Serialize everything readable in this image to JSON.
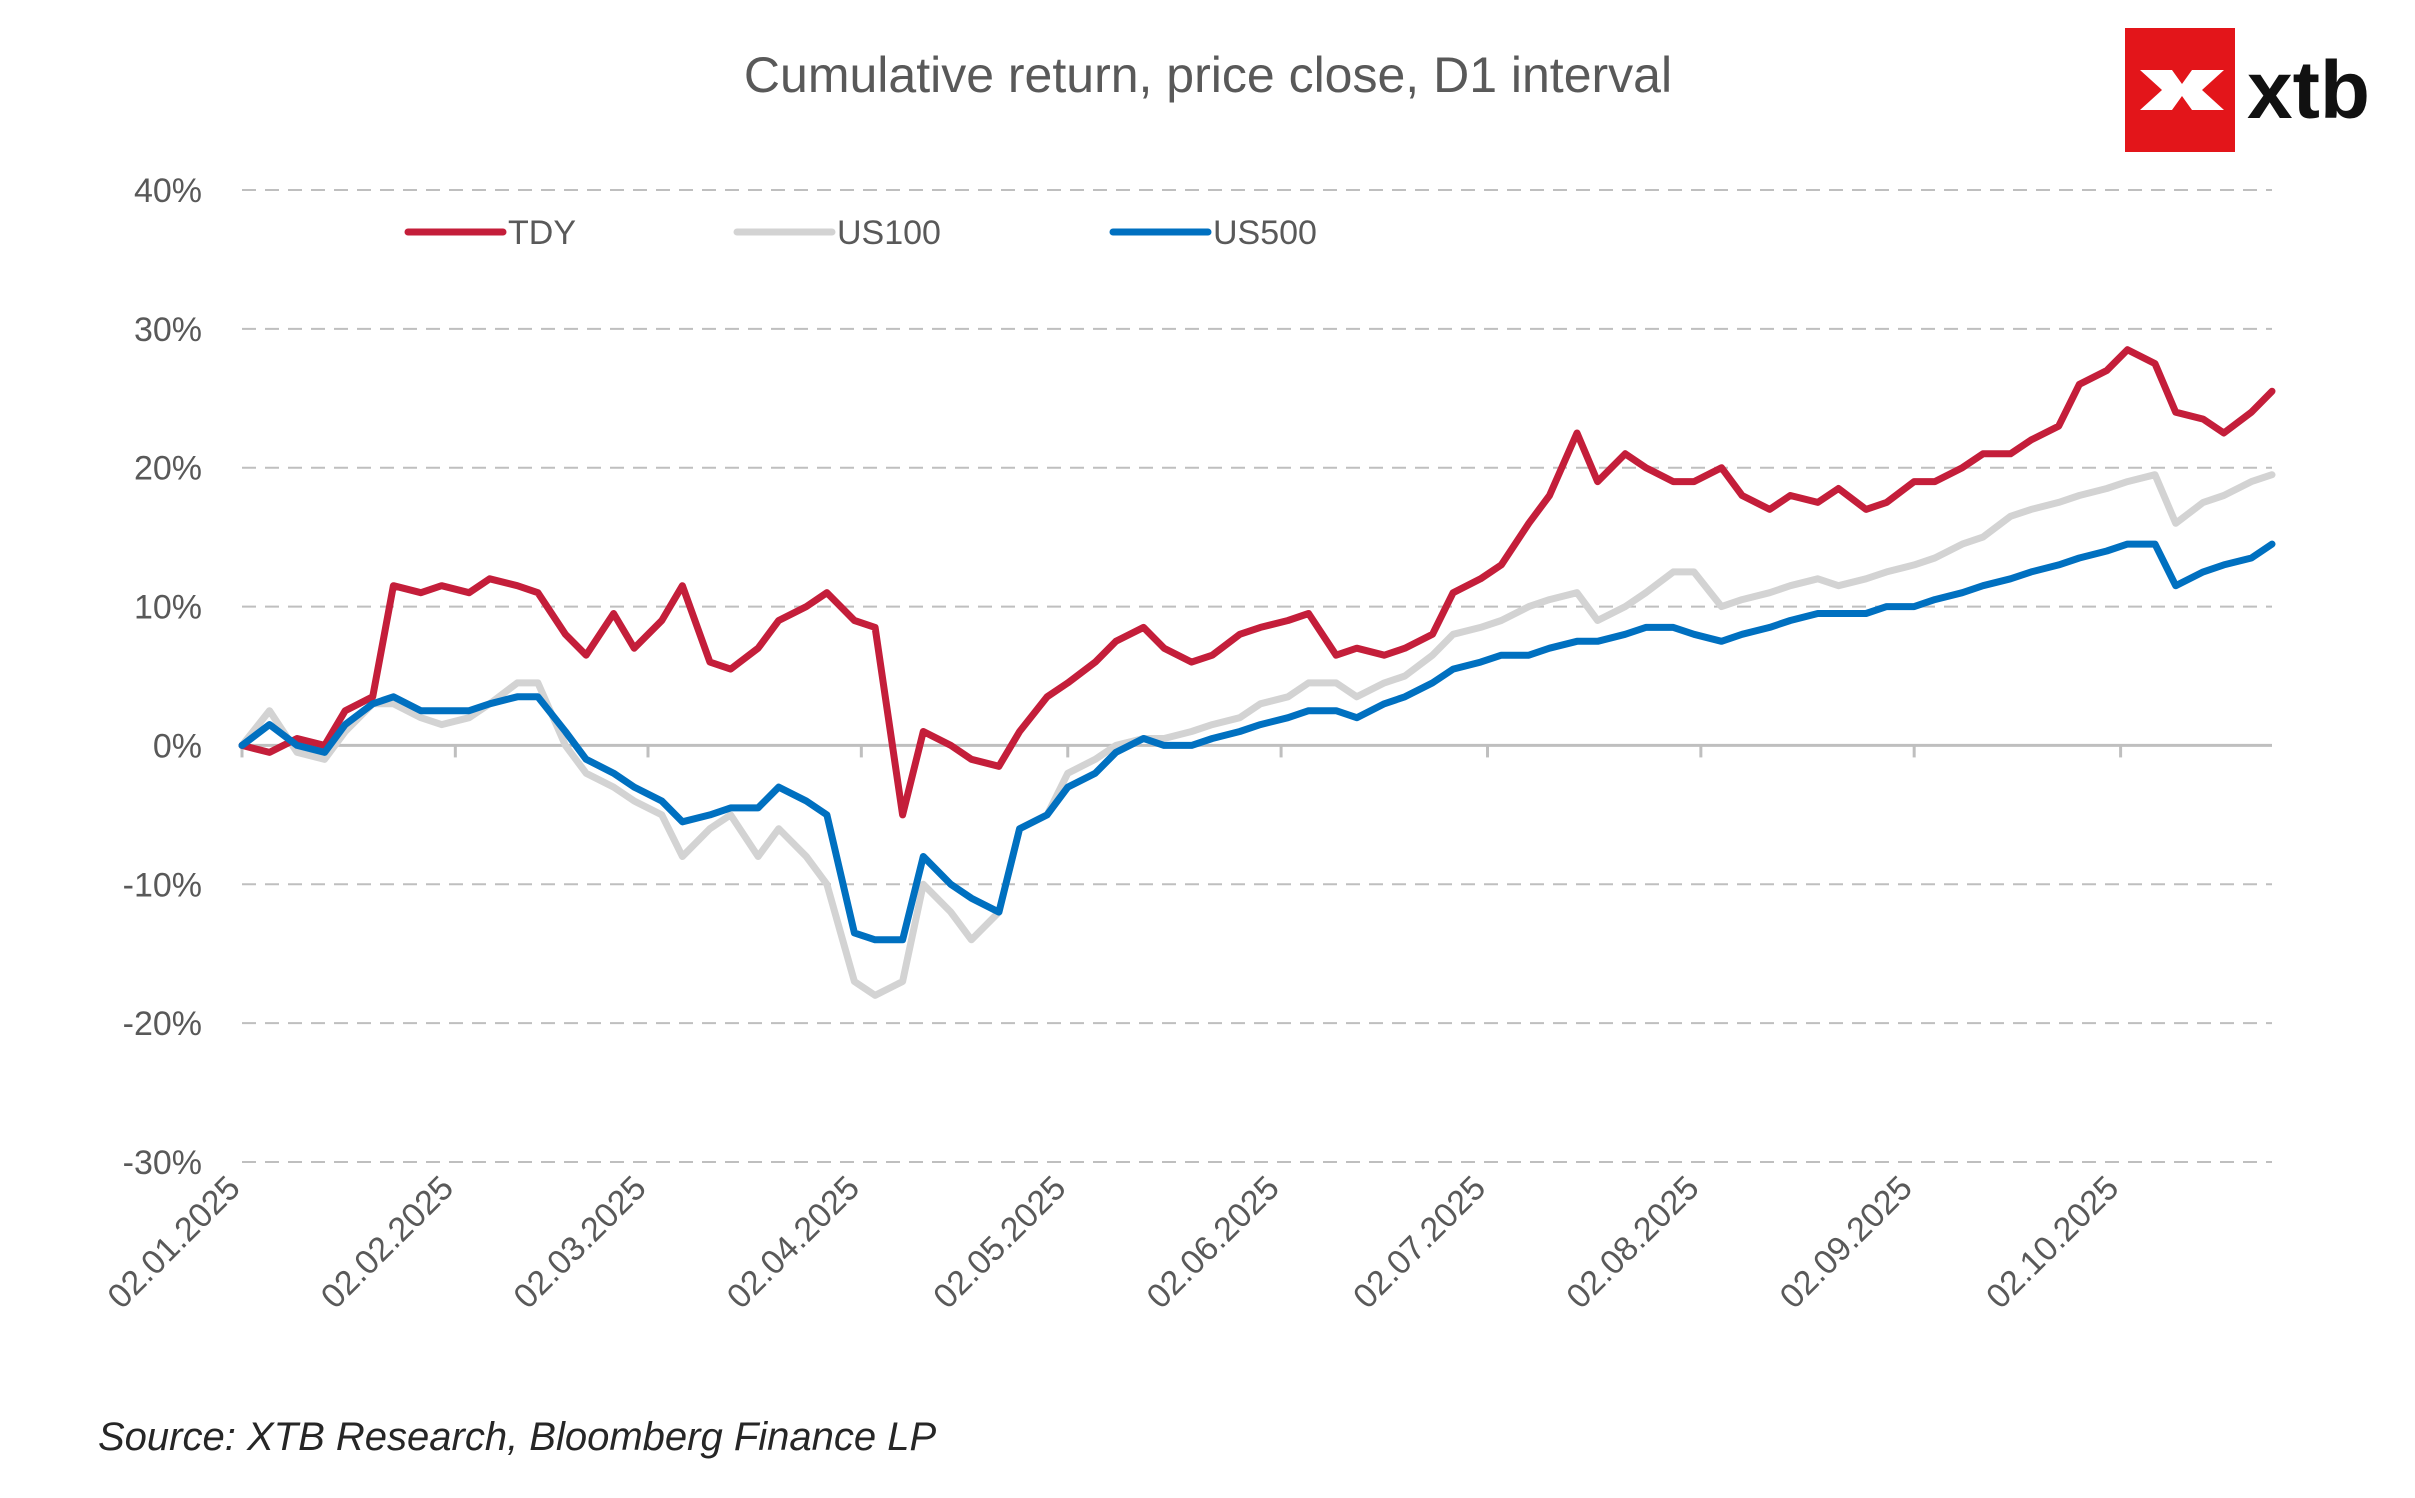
{
  "colors": {
    "TDY": "#C41E3A",
    "US100": "#D3D3D3",
    "US500": "#0070C0",
    "logo_red": "#E3151A",
    "grid": "#BFBFBF",
    "text": "#595959"
  },
  "logo": {
    "text": "xtb",
    "icon": "xtb-arrows-icon"
  },
  "source": "Source: XTB Research, Bloomberg Finance LP",
  "chart_data": {
    "type": "line",
    "title": "Cumulative return, price close, D1 interval",
    "xlabel": "",
    "ylabel": "",
    "ylim": [
      -30,
      40
    ],
    "yticks": [
      40,
      30,
      20,
      10,
      0,
      -10,
      -20,
      -30
    ],
    "ytick_labels": [
      "40%",
      "30%",
      "20%",
      "10%",
      "0%",
      "-10%",
      "-20%",
      "-30%"
    ],
    "x_range": [
      "2025-01-02",
      "2025-10-24"
    ],
    "xticks": [
      "2025-01-02",
      "2025-02-02",
      "2025-03-02",
      "2025-04-02",
      "2025-05-02",
      "2025-06-02",
      "2025-07-02",
      "2025-08-02",
      "2025-09-02",
      "2025-10-02"
    ],
    "xtick_labels": [
      "02.01.2025",
      "02.02.2025",
      "02.03.2025",
      "02.04.2025",
      "02.05.2025",
      "02.06.2025",
      "02.07.2025",
      "02.08.2025",
      "02.09.2025",
      "02.10.2025"
    ],
    "grid": "horizontal dashed",
    "legend": "top-left, horizontal",
    "x": [
      "2025-01-02",
      "2025-01-06",
      "2025-01-10",
      "2025-01-14",
      "2025-01-17",
      "2025-01-21",
      "2025-01-24",
      "2025-01-28",
      "2025-01-31",
      "2025-02-04",
      "2025-02-07",
      "2025-02-11",
      "2025-02-14",
      "2025-02-18",
      "2025-02-21",
      "2025-02-25",
      "2025-02-28",
      "2025-03-04",
      "2025-03-07",
      "2025-03-11",
      "2025-03-14",
      "2025-03-18",
      "2025-03-21",
      "2025-03-25",
      "2025-03-28",
      "2025-04-01",
      "2025-04-04",
      "2025-04-08",
      "2025-04-11",
      "2025-04-15",
      "2025-04-18",
      "2025-04-22",
      "2025-04-25",
      "2025-04-29",
      "2025-05-02",
      "2025-05-06",
      "2025-05-09",
      "2025-05-13",
      "2025-05-16",
      "2025-05-20",
      "2025-05-23",
      "2025-05-27",
      "2025-05-30",
      "2025-06-03",
      "2025-06-06",
      "2025-06-10",
      "2025-06-13",
      "2025-06-17",
      "2025-06-20",
      "2025-06-24",
      "2025-06-27",
      "2025-07-01",
      "2025-07-04",
      "2025-07-08",
      "2025-07-11",
      "2025-07-15",
      "2025-07-18",
      "2025-07-22",
      "2025-07-25",
      "2025-07-29",
      "2025-08-01",
      "2025-08-05",
      "2025-08-08",
      "2025-08-12",
      "2025-08-15",
      "2025-08-19",
      "2025-08-22",
      "2025-08-26",
      "2025-08-29",
      "2025-09-02",
      "2025-09-05",
      "2025-09-09",
      "2025-09-12",
      "2025-09-16",
      "2025-09-19",
      "2025-09-23",
      "2025-09-26",
      "2025-09-30",
      "2025-10-03",
      "2025-10-07",
      "2025-10-10",
      "2025-10-14",
      "2025-10-17",
      "2025-10-21",
      "2025-10-24"
    ],
    "series": [
      {
        "name": "TDY",
        "values": [
          0,
          -0.5,
          0.5,
          0,
          2.5,
          3.5,
          11.5,
          11,
          11.5,
          11,
          12,
          11.5,
          11,
          8,
          6.5,
          9.5,
          7,
          9,
          11.5,
          6,
          5.5,
          7,
          9,
          10,
          11,
          9,
          8.5,
          -5,
          1,
          0,
          -1,
          -1.5,
          1,
          3.5,
          4.5,
          6,
          7.5,
          8.5,
          7,
          6,
          6.5,
          8,
          8.5,
          9,
          9.5,
          6.5,
          7,
          6.5,
          7,
          8,
          11,
          12,
          13,
          16,
          18,
          22.5,
          19,
          21,
          20,
          19,
          19,
          20,
          18,
          17,
          18,
          17.5,
          18.5,
          17,
          17.5,
          19,
          19,
          20,
          21,
          21,
          22,
          23,
          26,
          27,
          28.5,
          27.5,
          24,
          23.5,
          22.5,
          24,
          25.5
        ]
      },
      {
        "name": "US100",
        "values": [
          0,
          2.5,
          -0.5,
          -1,
          1,
          3,
          3,
          2,
          1.5,
          2,
          3,
          4.5,
          4.5,
          0,
          -2,
          -3,
          -4,
          -5,
          -8,
          -6,
          -5,
          -8,
          -6,
          -8,
          -10,
          -17,
          -18,
          -17,
          -10,
          -12,
          -14,
          -12,
          -6,
          -5,
          -2,
          -1,
          0,
          0.5,
          0.5,
          1,
          1.5,
          2,
          3,
          3.5,
          4.5,
          4.5,
          3.5,
          4.5,
          5,
          6.5,
          8,
          8.5,
          9,
          10,
          10.5,
          11,
          9,
          10,
          11,
          12.5,
          12.5,
          10,
          10.5,
          11,
          11.5,
          12,
          11.5,
          12,
          12.5,
          13,
          13.5,
          14.5,
          15,
          16.5,
          17,
          17.5,
          18,
          18.5,
          19,
          19.5,
          16,
          17.5,
          18,
          19,
          19.5
        ]
      },
      {
        "name": "US500",
        "values": [
          0,
          1.5,
          0,
          -0.5,
          1.5,
          3,
          3.5,
          2.5,
          2.5,
          2.5,
          3,
          3.5,
          3.5,
          1,
          -1,
          -2,
          -3,
          -4,
          -5.5,
          -5,
          -4.5,
          -4.5,
          -3,
          -4,
          -5,
          -13.5,
          -14,
          -14,
          -8,
          -10,
          -11,
          -12,
          -6,
          -5,
          -3,
          -2,
          -0.5,
          0.5,
          0,
          0,
          0.5,
          1,
          1.5,
          2,
          2.5,
          2.5,
          2,
          3,
          3.5,
          4.5,
          5.5,
          6,
          6.5,
          6.5,
          7,
          7.5,
          7.5,
          8,
          8.5,
          8.5,
          8,
          7.5,
          8,
          8.5,
          9,
          9.5,
          9.5,
          9.5,
          10,
          10,
          10.5,
          11,
          11.5,
          12,
          12.5,
          13,
          13.5,
          14,
          14.5,
          14.5,
          11.5,
          12.5,
          13,
          13.5,
          14.5
        ]
      }
    ]
  }
}
